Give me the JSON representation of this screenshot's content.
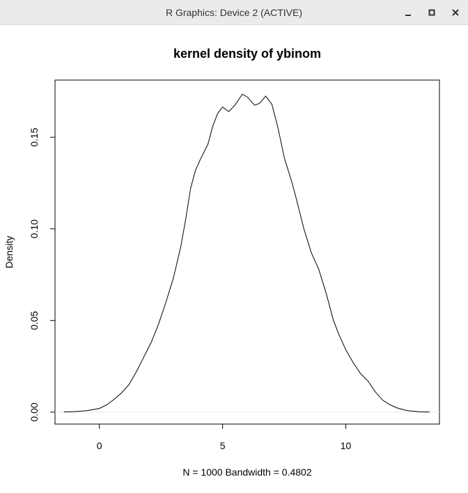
{
  "window": {
    "title": "R Graphics: Device 2 (ACTIVE)",
    "buttons": [
      {
        "name": "minimize",
        "icon": "minimize-icon"
      },
      {
        "name": "maximize",
        "icon": "maximize-icon"
      },
      {
        "name": "close",
        "icon": "close-icon"
      }
    ]
  },
  "chart_data": {
    "type": "line",
    "title": "kernel density of ybinom",
    "xlabel": "N = 1000   Bandwidth = 0.4802",
    "ylabel": "Density",
    "xlim": [
      -1.8,
      13.8
    ],
    "ylim": [
      -0.0065,
      0.1812
    ],
    "xticks": [
      0,
      5,
      10
    ],
    "xtick_labels": [
      "0",
      "5",
      "10"
    ],
    "yticks": [
      0.0,
      0.05,
      0.1,
      0.15
    ],
    "ytick_labels": [
      "0.00",
      "0.05",
      "0.10",
      "0.15"
    ],
    "grid": false,
    "line_color": "#000000",
    "series": [
      {
        "x": [
          -1.44,
          -1.0,
          -0.5,
          0.0,
          0.3,
          0.6,
          0.9,
          1.2,
          1.5,
          1.8,
          2.1,
          2.4,
          2.7,
          3.0,
          3.3,
          3.5,
          3.7,
          3.9,
          4.1,
          4.4,
          4.6,
          4.8,
          5.0,
          5.25,
          5.5,
          5.8,
          6.0,
          6.3,
          6.5,
          6.75,
          7.0,
          7.25,
          7.5,
          7.8,
          8.0,
          8.3,
          8.6,
          8.9,
          9.2,
          9.5,
          9.7,
          10.0,
          10.3,
          10.6,
          10.9,
          11.2,
          11.5,
          11.8,
          12.1,
          12.5,
          13.0,
          13.4
        ],
        "y": [
          0.0001,
          0.0003,
          0.0008,
          0.002,
          0.004,
          0.007,
          0.0105,
          0.015,
          0.022,
          0.03,
          0.038,
          0.048,
          0.06,
          0.073,
          0.09,
          0.105,
          0.122,
          0.132,
          0.138,
          0.146,
          0.156,
          0.163,
          0.1665,
          0.164,
          0.1675,
          0.1735,
          0.172,
          0.1675,
          0.1685,
          0.1725,
          0.168,
          0.155,
          0.139,
          0.126,
          0.116,
          0.1,
          0.087,
          0.078,
          0.065,
          0.05,
          0.043,
          0.034,
          0.027,
          0.021,
          0.017,
          0.011,
          0.0065,
          0.004,
          0.0022,
          0.0008,
          0.0002,
          5e-05
        ]
      }
    ]
  }
}
